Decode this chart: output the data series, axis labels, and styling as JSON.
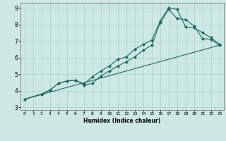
{
  "title": "",
  "xlabel": "Humidex (Indice chaleur)",
  "ylabel": "",
  "xlim": [
    -0.5,
    23.5
  ],
  "ylim": [
    2.85,
    9.3
  ],
  "xticks": [
    0,
    1,
    2,
    3,
    4,
    5,
    6,
    7,
    8,
    9,
    10,
    11,
    12,
    13,
    14,
    15,
    16,
    17,
    18,
    19,
    20,
    21,
    22,
    23
  ],
  "yticks": [
    3,
    4,
    5,
    6,
    7,
    8,
    9
  ],
  "bg_color": "#cde8e4",
  "grid_color": "#aacfca",
  "line_color": "#1e6b5a",
  "line1_x": [
    0,
    2,
    3,
    4,
    5,
    6,
    7,
    8,
    9,
    10,
    11,
    12,
    13,
    14,
    15,
    16,
    17,
    18,
    19,
    20,
    21,
    22,
    23
  ],
  "line1_y": [
    3.5,
    3.8,
    4.05,
    4.45,
    4.6,
    4.65,
    4.4,
    4.85,
    5.2,
    5.5,
    5.9,
    6.05,
    6.5,
    6.8,
    7.05,
    8.2,
    9.0,
    8.9,
    7.85,
    7.8,
    7.5,
    7.2,
    6.8
  ],
  "line2_x": [
    0,
    2,
    3,
    4,
    5,
    6,
    7,
    8,
    9,
    10,
    11,
    12,
    13,
    14,
    15,
    16,
    17,
    18,
    19,
    20,
    21,
    22,
    23
  ],
  "line2_y": [
    3.5,
    3.8,
    4.05,
    4.45,
    4.6,
    4.65,
    4.35,
    4.45,
    4.9,
    5.2,
    5.5,
    5.75,
    6.05,
    6.45,
    6.75,
    8.1,
    8.9,
    8.35,
    8.3,
    7.9,
    7.15,
    7.1,
    6.75
  ],
  "line3_x": [
    0,
    23
  ],
  "line3_y": [
    3.5,
    6.75
  ]
}
